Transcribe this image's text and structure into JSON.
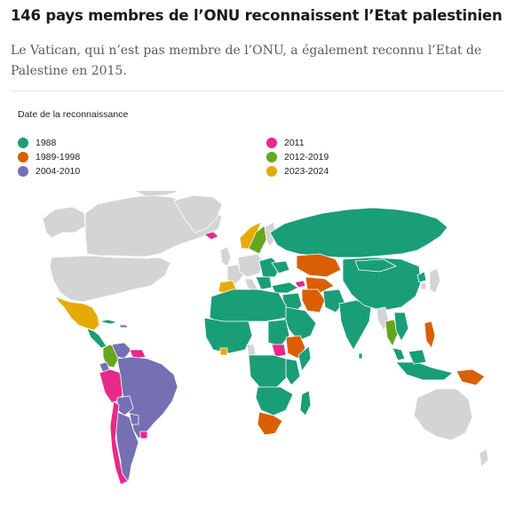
{
  "header": {
    "title": "146 pays membres de l’ONU reconnaissent l’Etat palestinien",
    "subtitle": "Le Vatican, qui n’est pas membre de l’ONU, a également reconnu l’Etat de Palestine en 2015."
  },
  "legend": {
    "title": "Date de la reconnaissance",
    "items": [
      {
        "label": "1988",
        "color": "#1a9e77"
      },
      {
        "label": "1989-1998",
        "color": "#d95f02"
      },
      {
        "label": "2004-2010",
        "color": "#7570b3"
      },
      {
        "label": "2011",
        "color": "#e7298a"
      },
      {
        "label": "2012-2019",
        "color": "#66a61e"
      },
      {
        "label": "2023-2024",
        "color": "#e6ab02"
      }
    ]
  },
  "map": {
    "no_data_color": "#d4d4d4",
    "border_color": "#ffffff",
    "water_color": "#ffffff"
  }
}
